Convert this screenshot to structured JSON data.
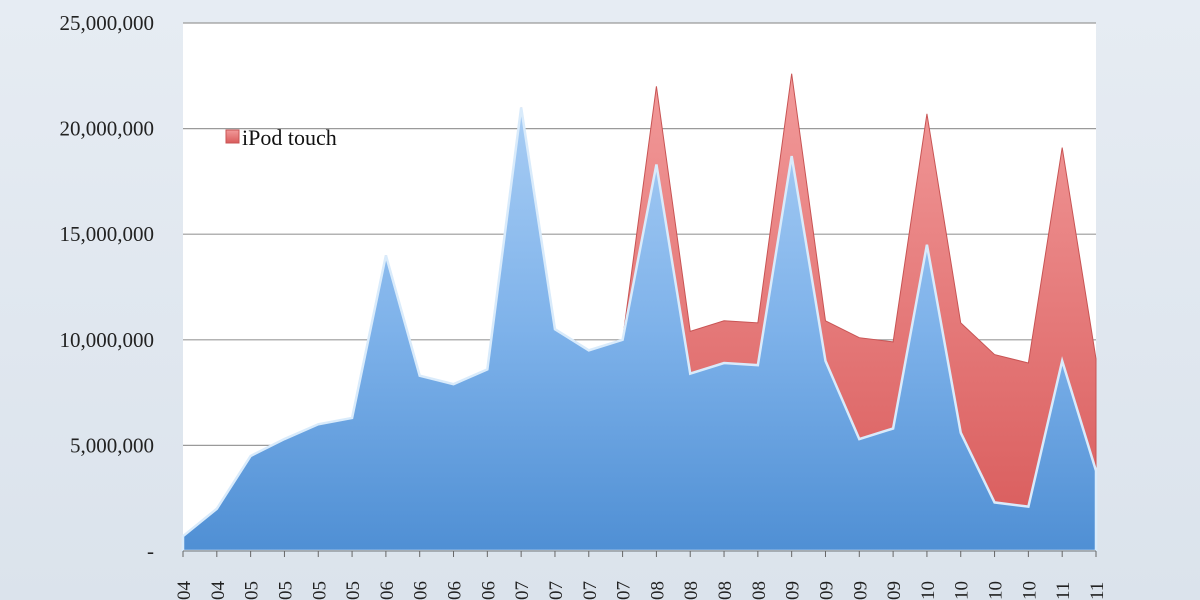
{
  "chart_data": {
    "type": "area",
    "stacked": true,
    "title": "",
    "xlabel": "",
    "ylabel": "",
    "ylim": [
      0,
      25000000
    ],
    "yticks": [
      0,
      5000000,
      10000000,
      15000000,
      20000000,
      25000000
    ],
    "ytick_labels": [
      "-",
      "5,000,000",
      "10,000,000",
      "15,000,000",
      "20,000,000",
      "25,000,000"
    ],
    "grid": true,
    "legend_position": "upper-left",
    "x": [
      "04",
      "04",
      "05",
      "05",
      "05",
      "05",
      "06",
      "06",
      "06",
      "06",
      "07",
      "07",
      "07",
      "07",
      "08",
      "08",
      "08",
      "08",
      "09",
      "09",
      "09",
      "09",
      "10",
      "10",
      "10",
      "10",
      "11",
      "11"
    ],
    "series": [
      {
        "name": "",
        "color": "#6fa7e3",
        "values": [
          700000,
          2000000,
          4500000,
          5300000,
          6000000,
          6300000,
          14000000,
          8300000,
          7900000,
          8600000,
          21000000,
          10500000,
          9500000,
          10000000,
          18300000,
          8400000,
          8900000,
          8800000,
          18700000,
          9000000,
          5300000,
          5800000,
          14500000,
          5600000,
          2300000,
          2100000,
          9000000,
          3800000
        ]
      },
      {
        "name": "iPod touch",
        "color": "#e26f6f",
        "values": [
          0,
          0,
          0,
          0,
          0,
          0,
          0,
          0,
          0,
          0,
          0,
          0,
          0,
          0,
          3700000,
          2000000,
          2000000,
          2000000,
          3900000,
          1900000,
          4800000,
          4100000,
          6200000,
          5200000,
          7000000,
          6800000,
          10100000,
          5300000
        ]
      }
    ]
  }
}
